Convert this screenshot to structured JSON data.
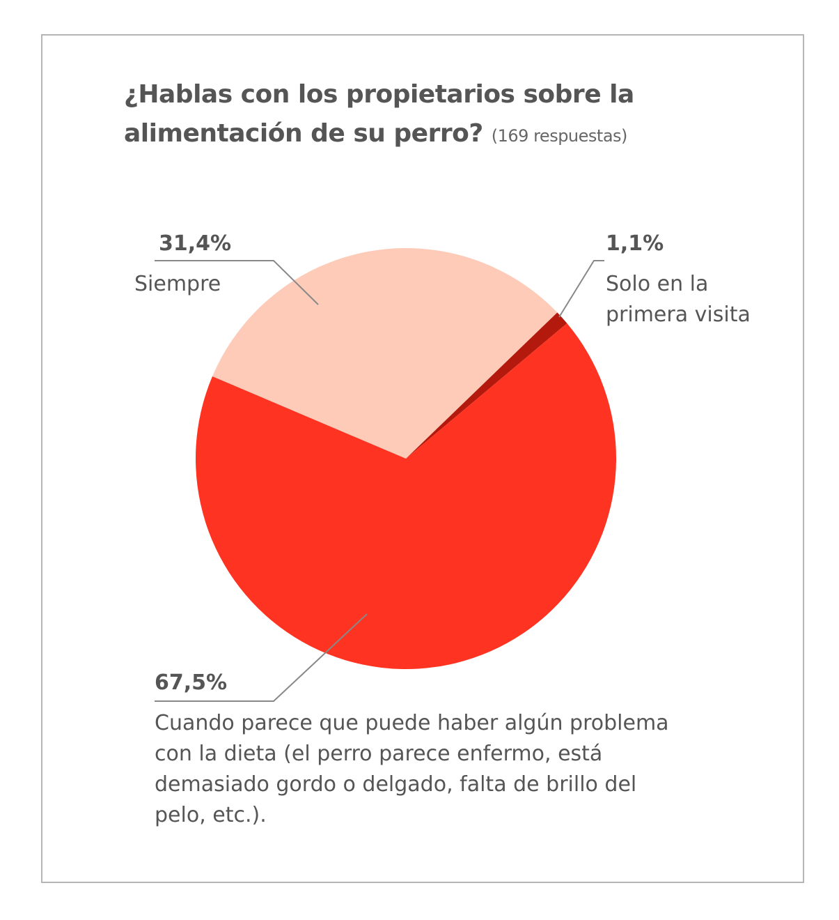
{
  "chart_data": {
    "type": "pie",
    "title": "¿Hablas con los propietarios sobre la alimentación de su perro?",
    "subtitle": "(169 respuestas)",
    "categories": [
      "Siempre",
      "Solo en la primera visita",
      "Cuando parece que puede haber algún problema con la dieta (el perro parece enfermo, está demasiado gordo o delgado, falta de brillo del pelo, etc.)."
    ],
    "values": [
      31.4,
      1.1,
      67.5
    ],
    "value_labels": [
      "31,4%",
      "1,1%",
      "67,5%"
    ],
    "colors": [
      "#fdcbb8",
      "#b3190c",
      "#ff3322"
    ]
  }
}
